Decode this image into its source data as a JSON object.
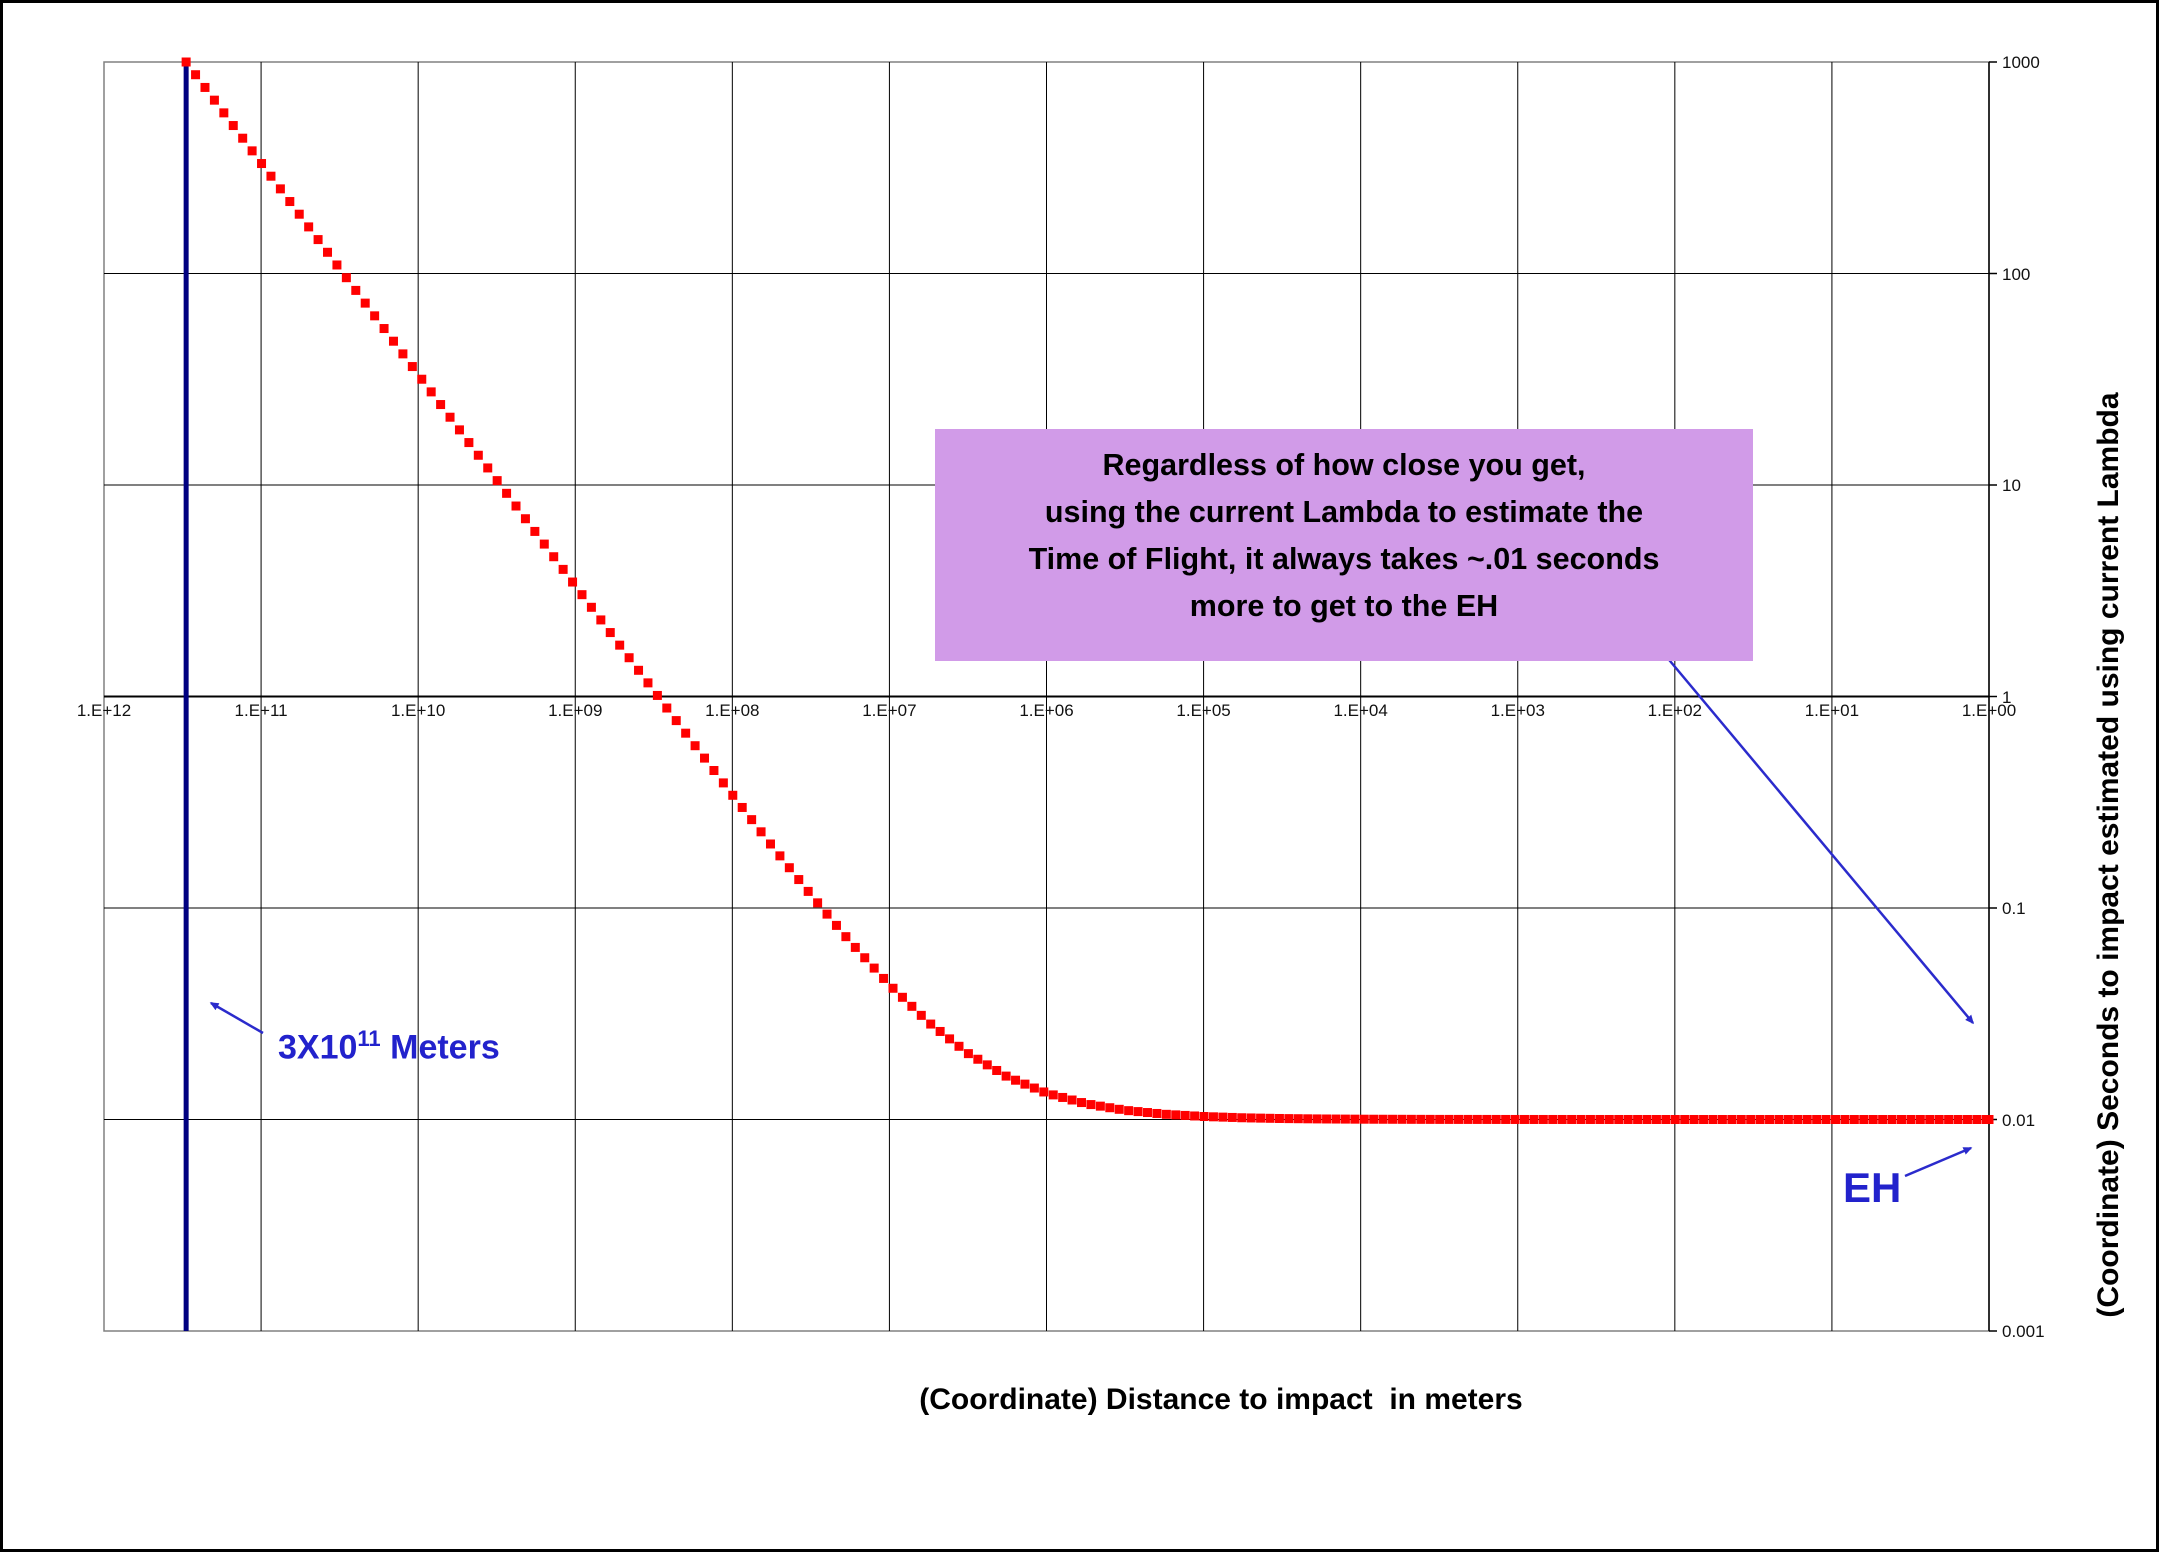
{
  "figure": {
    "background": "#FFFFFF",
    "border_color": "#000000",
    "grid_color": "#000000",
    "plot_border_color": "#808080"
  },
  "chart_data": {
    "type": "scatter",
    "title": "",
    "xlabel": "(Coordinate) Distance to impact  in meters",
    "ylabel": "(Coordinate) Seconds to impact estimated using current Lambda",
    "x_scale": "log",
    "y_scale": "log",
    "x_direction": "decreasing left to right",
    "xlim": [
      1000000000000.0,
      1.0
    ],
    "ylim": [
      0.001,
      1000
    ],
    "grid": "on",
    "legend": "none",
    "x_tick_labels": [
      "1.E+12",
      "1.E+11",
      "1.E+10",
      "1.E+09",
      "1.E+08",
      "1.E+07",
      "1.E+06",
      "1.E+05",
      "1.E+04",
      "1.E+03",
      "1.E+02",
      "1.E+01",
      "1.E+00"
    ],
    "y_tick_labels": [
      "1000",
      "100",
      "10",
      "1",
      "0.1",
      "0.01",
      "0.001"
    ],
    "asymptote_seconds": 0.01,
    "reference_line": {
      "x_meters": 300000000000.0,
      "color": "#000080",
      "label": "3X10^11 Meters"
    },
    "series": [
      {
        "name": "Seconds to impact estimated using current Lambda",
        "color": "#FF0000",
        "marker": "square",
        "points": [
          [
            300000000000.0,
            1000.0
          ],
          [
            178000000000.0,
            592.6
          ],
          [
            100000000000.0,
            333.3
          ],
          [
            56200000000.0,
            187.5
          ],
          [
            31600000000.0,
            105.4
          ],
          [
            17800000000.0,
            59.3
          ],
          [
            10000000000.0,
            33.34
          ],
          [
            5620000000.0,
            18.76
          ],
          [
            3160000000.0,
            10.55
          ],
          [
            1780000000.0,
            5.94
          ],
          [
            1000000000.0,
            3.343
          ],
          [
            562000000.0,
            1.884
          ],
          [
            316000000.0,
            1.065
          ],
          [
            178000000.0,
            0.603
          ],
          [
            100000000.0,
            0.3433
          ],
          [
            56200000.0,
            0.1975
          ],
          [
            31600000.0,
            0.1154
          ],
          [
            17800000.0,
            0.0693
          ],
          [
            10000000.0,
            0.04333
          ],
          [
            5620000.0,
            0.02875
          ],
          [
            3160000.0,
            0.02054
          ],
          [
            1780000.0,
            0.01593
          ],
          [
            1000000.0,
            0.013333
          ],
          [
            562000.0,
            0.011875
          ],
          [
            316000.0,
            0.011054
          ],
          [
            178000.0,
            0.010593
          ],
          [
            100000.0,
            0.010333
          ],
          [
            56200.0,
            0.0101875
          ],
          [
            31600.0,
            0.0101054
          ],
          [
            17800.0,
            0.0100593
          ],
          [
            10000.0,
            0.0100333
          ],
          [
            3160.0,
            0.0100105
          ],
          [
            1000.0,
            0.0100033
          ],
          [
            100.0,
            0.0100003
          ],
          [
            10.0,
            0.01
          ],
          [
            1.0,
            0.01
          ]
        ]
      }
    ]
  },
  "annotations": {
    "box": {
      "fill": "#D19BE8",
      "text_color": "#000000",
      "lines": [
        "Regardless of how close you get,",
        "using the current Lambda to estimate the",
        "Time of Flight, it always takes ~.01 seconds",
        "more to get to the EH"
      ]
    },
    "distance_label": {
      "prefix": "3X10",
      "exponent": "11",
      "suffix": " Meters",
      "color": "#2222CC"
    },
    "eh_label": {
      "text": "EH",
      "color": "#2222CC"
    },
    "arrow_color": "#2B2BCC"
  }
}
